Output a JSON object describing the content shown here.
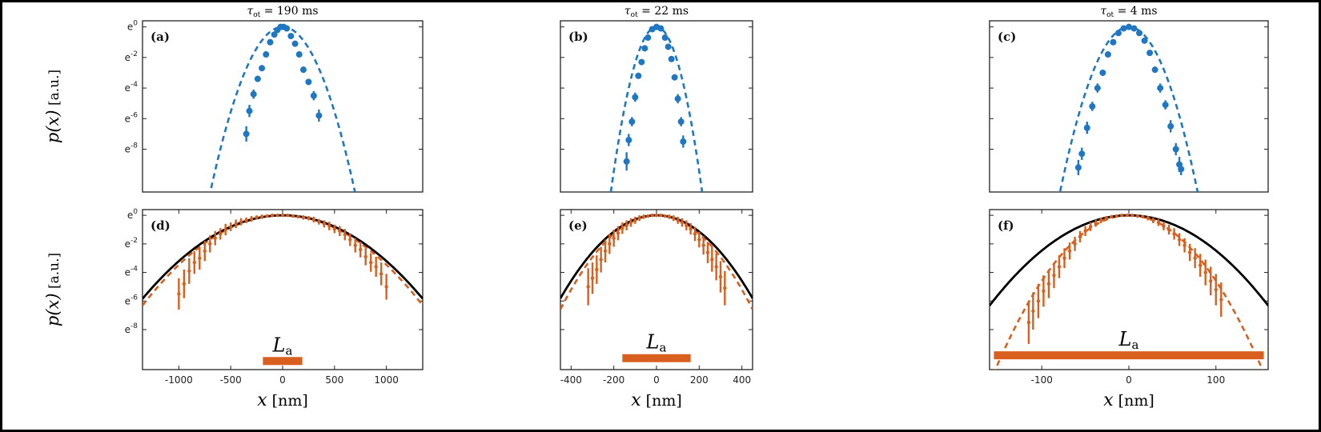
{
  "chart_data": [
    {
      "panel": "(a)",
      "type": "scatter",
      "title": "τot = 190 ms",
      "ylabel": "p(x) [a.u.]",
      "xlabel": "",
      "xlim": [
        -1350,
        1350
      ],
      "ylim": [
        -10.8,
        0.4
      ],
      "xticks": [],
      "yticks": [
        0,
        -2,
        -4,
        -6,
        -8
      ],
      "ytick_labels": [
        "e0",
        "e-2",
        "e-4",
        "e-6",
        "e-8"
      ],
      "colors": {
        "data": "#1f77c4",
        "fit": "#1f77c4"
      },
      "fit_dashed": {
        "sigma": 150
      },
      "points": [
        {
          "x": -350,
          "y": -7.0,
          "err": 0.5
        },
        {
          "x": -320,
          "y": -5.5,
          "err": 0.4
        },
        {
          "x": -280,
          "y": -4.4,
          "err": 0.3
        },
        {
          "x": -240,
          "y": -3.4,
          "err": 0.2
        },
        {
          "x": -200,
          "y": -2.7,
          "err": 0.2
        },
        {
          "x": -160,
          "y": -1.8,
          "err": 0.15
        },
        {
          "x": -120,
          "y": -1.0,
          "err": 0.1
        },
        {
          "x": -80,
          "y": -0.5,
          "err": 0.1
        },
        {
          "x": -50,
          "y": -0.2,
          "err": 0.1
        },
        {
          "x": -20,
          "y": 0.0,
          "err": 0.05
        },
        {
          "x": 10,
          "y": 0.0,
          "err": 0.05
        },
        {
          "x": 40,
          "y": -0.1,
          "err": 0.05
        },
        {
          "x": 80,
          "y": -0.6,
          "err": 0.1
        },
        {
          "x": 120,
          "y": -1.1,
          "err": 0.1
        },
        {
          "x": 160,
          "y": -1.8,
          "err": 0.15
        },
        {
          "x": 200,
          "y": -2.8,
          "err": 0.2
        },
        {
          "x": 250,
          "y": -3.6,
          "err": 0.2
        },
        {
          "x": 300,
          "y": -4.5,
          "err": 0.3
        },
        {
          "x": 350,
          "y": -5.8,
          "err": 0.4
        }
      ]
    },
    {
      "panel": "(b)",
      "type": "scatter",
      "title": "τot = 22 ms",
      "ylabel": "",
      "xlabel": "",
      "xlim": [
        -450,
        450
      ],
      "ylim": [
        -10.8,
        0.4
      ],
      "xticks": [],
      "yticks": [
        0,
        -2,
        -4,
        -6,
        -8
      ],
      "ytick_labels": [],
      "colors": {
        "data": "#1f77c4",
        "fit": "#1f77c4"
      },
      "fit_dashed": {
        "sigma": 46
      },
      "points": [
        {
          "x": -140,
          "y": -8.8,
          "err": 0.6
        },
        {
          "x": -130,
          "y": -7.4,
          "err": 0.4
        },
        {
          "x": -115,
          "y": -6.2,
          "err": 0.3
        },
        {
          "x": -100,
          "y": -4.6,
          "err": 0.3
        },
        {
          "x": -85,
          "y": -3.2,
          "err": 0.2
        },
        {
          "x": -70,
          "y": -2.3,
          "err": 0.15
        },
        {
          "x": -55,
          "y": -1.4,
          "err": 0.1
        },
        {
          "x": -40,
          "y": -0.7,
          "err": 0.1
        },
        {
          "x": -20,
          "y": -0.15,
          "err": 0.05
        },
        {
          "x": 0,
          "y": 0.0,
          "err": 0.05
        },
        {
          "x": 20,
          "y": -0.1,
          "err": 0.05
        },
        {
          "x": 40,
          "y": -0.7,
          "err": 0.1
        },
        {
          "x": 55,
          "y": -1.3,
          "err": 0.1
        },
        {
          "x": 70,
          "y": -2.1,
          "err": 0.15
        },
        {
          "x": 85,
          "y": -3.3,
          "err": 0.2
        },
        {
          "x": 100,
          "y": -4.7,
          "err": 0.3
        },
        {
          "x": 115,
          "y": -6.2,
          "err": 0.3
        },
        {
          "x": 125,
          "y": -7.5,
          "err": 0.4
        }
      ]
    },
    {
      "panel": "(c)",
      "type": "scatter",
      "title": "τot = 4 ms",
      "ylabel": "",
      "xlabel": "",
      "xlim": [
        -160,
        160
      ],
      "ylim": [
        -10.8,
        0.4
      ],
      "xticks": [],
      "yticks": [
        0,
        -2,
        -4,
        -6,
        -8
      ],
      "ytick_labels": [],
      "colors": {
        "data": "#1f77c4",
        "fit": "#1f77c4"
      },
      "fit_dashed": {
        "sigma": 17
      },
      "points": [
        {
          "x": -58,
          "y": -9.2,
          "err": 0.5
        },
        {
          "x": -54,
          "y": -8.3,
          "err": 0.4
        },
        {
          "x": -48,
          "y": -6.6,
          "err": 0.4
        },
        {
          "x": -42,
          "y": -5.2,
          "err": 0.3
        },
        {
          "x": -36,
          "y": -4.0,
          "err": 0.3
        },
        {
          "x": -30,
          "y": -3.0,
          "err": 0.2
        },
        {
          "x": -24,
          "y": -1.8,
          "err": 0.15
        },
        {
          "x": -18,
          "y": -1.0,
          "err": 0.1
        },
        {
          "x": -12,
          "y": -0.4,
          "err": 0.1
        },
        {
          "x": -6,
          "y": -0.1,
          "err": 0.05
        },
        {
          "x": 0,
          "y": 0.0,
          "err": 0.05
        },
        {
          "x": 6,
          "y": -0.1,
          "err": 0.05
        },
        {
          "x": 12,
          "y": -0.4,
          "err": 0.1
        },
        {
          "x": 18,
          "y": -0.9,
          "err": 0.1
        },
        {
          "x": 24,
          "y": -1.7,
          "err": 0.15
        },
        {
          "x": 30,
          "y": -2.8,
          "err": 0.2
        },
        {
          "x": 36,
          "y": -4.0,
          "err": 0.3
        },
        {
          "x": 42,
          "y": -5.1,
          "err": 0.3
        },
        {
          "x": 48,
          "y": -6.5,
          "err": 0.4
        },
        {
          "x": 54,
          "y": -8.0,
          "err": 0.4
        },
        {
          "x": 58,
          "y": -9.0,
          "err": 0.5
        },
        {
          "x": 60,
          "y": -9.3,
          "err": 0.4
        }
      ]
    },
    {
      "panel": "(d)",
      "type": "line",
      "title": "",
      "ylabel": "p(x) [a.u.]",
      "xlabel": "x [nm]",
      "xlim": [
        -1350,
        1350
      ],
      "ylim": [
        -10.8,
        0.4
      ],
      "xticks": [
        -1000,
        -500,
        0,
        500,
        1000
      ],
      "xtick_labels": [
        "-1000",
        "-500",
        "0",
        "500",
        "1000"
      ],
      "yticks": [
        0,
        -2,
        -4,
        -6,
        -8
      ],
      "ytick_labels": [
        "e0",
        "e-2",
        "e-4",
        "e-6",
        "e-8"
      ],
      "colors": {
        "data": "#d95f1e",
        "fit": "#000000"
      },
      "fit_solid": {
        "sigma": 395
      },
      "fit_dashed": {
        "sigma": 380
      },
      "La": {
        "label": "La",
        "x0": -190,
        "x1": 190,
        "y": -10.2
      },
      "points": [
        {
          "x": -1000,
          "y": -5.5,
          "err": 1.1
        },
        {
          "x": -950,
          "y": -4.8,
          "err": 1.0
        },
        {
          "x": -900,
          "y": -3.9,
          "err": 0.9
        },
        {
          "x": -850,
          "y": -3.3,
          "err": 0.8
        },
        {
          "x": -800,
          "y": -3.0,
          "err": 0.8
        },
        {
          "x": -750,
          "y": -2.5,
          "err": 0.7
        },
        {
          "x": -700,
          "y": -2.0,
          "err": 0.6
        },
        {
          "x": -650,
          "y": -1.6,
          "err": 0.5
        },
        {
          "x": -600,
          "y": -1.3,
          "err": 0.4
        },
        {
          "x": -550,
          "y": -1.0,
          "err": 0.4
        },
        {
          "x": -500,
          "y": -0.8,
          "err": 0.3
        },
        {
          "x": -450,
          "y": -0.6,
          "err": 0.3
        },
        {
          "x": -400,
          "y": -0.45,
          "err": 0.25
        },
        {
          "x": -350,
          "y": -0.35,
          "err": 0.2
        },
        {
          "x": -300,
          "y": -0.25,
          "err": 0.2
        },
        {
          "x": -250,
          "y": -0.15,
          "err": 0.15
        },
        {
          "x": -200,
          "y": -0.1,
          "err": 0.15
        },
        {
          "x": -150,
          "y": -0.05,
          "err": 0.1
        },
        {
          "x": -100,
          "y": 0.0,
          "err": 0.1
        },
        {
          "x": -50,
          "y": 0.0,
          "err": 0.1
        },
        {
          "x": 0,
          "y": 0.0,
          "err": 0.1
        },
        {
          "x": 50,
          "y": 0.0,
          "err": 0.1
        },
        {
          "x": 100,
          "y": -0.05,
          "err": 0.1
        },
        {
          "x": 150,
          "y": -0.1,
          "err": 0.1
        },
        {
          "x": 200,
          "y": -0.15,
          "err": 0.15
        },
        {
          "x": 250,
          "y": -0.2,
          "err": 0.15
        },
        {
          "x": 300,
          "y": -0.3,
          "err": 0.2
        },
        {
          "x": 350,
          "y": -0.45,
          "err": 0.2
        },
        {
          "x": 400,
          "y": -0.6,
          "err": 0.25
        },
        {
          "x": 450,
          "y": -0.75,
          "err": 0.3
        },
        {
          "x": 500,
          "y": -0.95,
          "err": 0.3
        },
        {
          "x": 550,
          "y": -1.1,
          "err": 0.35
        },
        {
          "x": 600,
          "y": -1.35,
          "err": 0.4
        },
        {
          "x": 650,
          "y": -1.7,
          "err": 0.45
        },
        {
          "x": 700,
          "y": -2.1,
          "err": 0.5
        },
        {
          "x": 750,
          "y": -2.4,
          "err": 0.55
        },
        {
          "x": 800,
          "y": -2.9,
          "err": 0.6
        },
        {
          "x": 850,
          "y": -3.3,
          "err": 0.65
        },
        {
          "x": 900,
          "y": -3.6,
          "err": 0.7
        },
        {
          "x": 950,
          "y": -4.1,
          "err": 0.8
        },
        {
          "x": 1000,
          "y": -5.0,
          "err": 0.9
        }
      ]
    },
    {
      "panel": "(e)",
      "type": "line",
      "title": "",
      "ylabel": "",
      "xlabel": "x [nm]",
      "xlim": [
        -450,
        450
      ],
      "ylim": [
        -10.8,
        0.4
      ],
      "xticks": [
        -400,
        -200,
        0,
        200,
        400
      ],
      "xtick_labels": [
        "-400",
        "-200",
        "0",
        "200",
        "400"
      ],
      "yticks": [
        0,
        -2,
        -4,
        -6,
        -8
      ],
      "ytick_labels": [],
      "colors": {
        "data": "#d95f1e",
        "fit": "#000000"
      },
      "fit_solid": {
        "sigma": 132
      },
      "fit_dashed": {
        "sigma": 124
      },
      "La": {
        "label": "La",
        "x0": -160,
        "x1": 160,
        "y": -10.0
      },
      "points": [
        {
          "x": -320,
          "y": -5.0,
          "err": 1.3
        },
        {
          "x": -300,
          "y": -4.4,
          "err": 1.1
        },
        {
          "x": -280,
          "y": -3.8,
          "err": 1.0
        },
        {
          "x": -260,
          "y": -3.1,
          "err": 0.9
        },
        {
          "x": -240,
          "y": -2.5,
          "err": 0.8
        },
        {
          "x": -220,
          "y": -2.0,
          "err": 0.7
        },
        {
          "x": -200,
          "y": -1.6,
          "err": 0.6
        },
        {
          "x": -180,
          "y": -1.25,
          "err": 0.5
        },
        {
          "x": -160,
          "y": -0.9,
          "err": 0.4
        },
        {
          "x": -140,
          "y": -0.7,
          "err": 0.35
        },
        {
          "x": -120,
          "y": -0.5,
          "err": 0.3
        },
        {
          "x": -100,
          "y": -0.35,
          "err": 0.25
        },
        {
          "x": -80,
          "y": -0.2,
          "err": 0.2
        },
        {
          "x": -60,
          "y": -0.1,
          "err": 0.15
        },
        {
          "x": -40,
          "y": -0.05,
          "err": 0.1
        },
        {
          "x": -20,
          "y": 0.0,
          "err": 0.1
        },
        {
          "x": 0,
          "y": 0.0,
          "err": 0.1
        },
        {
          "x": 20,
          "y": 0.0,
          "err": 0.1
        },
        {
          "x": 40,
          "y": -0.05,
          "err": 0.1
        },
        {
          "x": 60,
          "y": -0.1,
          "err": 0.15
        },
        {
          "x": 80,
          "y": -0.2,
          "err": 0.2
        },
        {
          "x": 100,
          "y": -0.35,
          "err": 0.25
        },
        {
          "x": 120,
          "y": -0.5,
          "err": 0.3
        },
        {
          "x": 140,
          "y": -0.7,
          "err": 0.35
        },
        {
          "x": 160,
          "y": -0.95,
          "err": 0.4
        },
        {
          "x": 180,
          "y": -1.3,
          "err": 0.5
        },
        {
          "x": 200,
          "y": -1.7,
          "err": 0.55
        },
        {
          "x": 220,
          "y": -2.1,
          "err": 0.65
        },
        {
          "x": 240,
          "y": -2.6,
          "err": 0.75
        },
        {
          "x": 260,
          "y": -3.1,
          "err": 0.85
        },
        {
          "x": 280,
          "y": -3.6,
          "err": 0.95
        },
        {
          "x": 300,
          "y": -4.3,
          "err": 1.1
        },
        {
          "x": 320,
          "y": -5.1,
          "err": 1.2
        }
      ]
    },
    {
      "panel": "(f)",
      "type": "line",
      "title": "",
      "ylabel": "",
      "xlabel": "x [nm]",
      "xlim": [
        -160,
        160
      ],
      "ylim": [
        -10.8,
        0.4
      ],
      "xticks": [
        -100,
        0,
        100
      ],
      "xtick_labels": [
        "-100",
        "0",
        "100"
      ],
      "yticks": [
        0,
        -2,
        -4,
        -6,
        -8
      ],
      "ytick_labels": [],
      "colors": {
        "data": "#d95f1e",
        "fit": "#000000"
      },
      "fit_solid": {
        "sigma": 45
      },
      "fit_dashed": {
        "sigma": 33
      },
      "La": {
        "label": "La",
        "x0": -155,
        "x1": 155,
        "y": -9.8
      },
      "points": [
        {
          "x": -115,
          "y": -7.5,
          "err": 1.5
        },
        {
          "x": -110,
          "y": -6.7,
          "err": 1.3
        },
        {
          "x": -104,
          "y": -6.0,
          "err": 1.2
        },
        {
          "x": -98,
          "y": -5.3,
          "err": 1.1
        },
        {
          "x": -92,
          "y": -4.8,
          "err": 1.0
        },
        {
          "x": -86,
          "y": -4.2,
          "err": 0.9
        },
        {
          "x": -80,
          "y": -3.6,
          "err": 0.8
        },
        {
          "x": -74,
          "y": -3.0,
          "err": 0.7
        },
        {
          "x": -68,
          "y": -2.5,
          "err": 0.6
        },
        {
          "x": -62,
          "y": -2.0,
          "err": 0.5
        },
        {
          "x": -56,
          "y": -1.5,
          "err": 0.4
        },
        {
          "x": -50,
          "y": -1.1,
          "err": 0.35
        },
        {
          "x": -44,
          "y": -0.8,
          "err": 0.3
        },
        {
          "x": -38,
          "y": -0.55,
          "err": 0.25
        },
        {
          "x": -32,
          "y": -0.35,
          "err": 0.2
        },
        {
          "x": -26,
          "y": -0.2,
          "err": 0.15
        },
        {
          "x": -20,
          "y": -0.1,
          "err": 0.1
        },
        {
          "x": -14,
          "y": -0.05,
          "err": 0.1
        },
        {
          "x": -8,
          "y": 0.0,
          "err": 0.1
        },
        {
          "x": -2,
          "y": 0.0,
          "err": 0.1
        },
        {
          "x": 4,
          "y": 0.0,
          "err": 0.1
        },
        {
          "x": 10,
          "y": -0.05,
          "err": 0.1
        },
        {
          "x": 16,
          "y": -0.1,
          "err": 0.1
        },
        {
          "x": 22,
          "y": -0.2,
          "err": 0.15
        },
        {
          "x": 28,
          "y": -0.35,
          "err": 0.2
        },
        {
          "x": 34,
          "y": -0.5,
          "err": 0.25
        },
        {
          "x": 40,
          "y": -0.75,
          "err": 0.3
        },
        {
          "x": 46,
          "y": -1.0,
          "err": 0.35
        },
        {
          "x": 52,
          "y": -1.3,
          "err": 0.4
        },
        {
          "x": 58,
          "y": -1.7,
          "err": 0.45
        },
        {
          "x": 64,
          "y": -2.1,
          "err": 0.5
        },
        {
          "x": 70,
          "y": -2.6,
          "err": 0.6
        },
        {
          "x": 76,
          "y": -3.0,
          "err": 0.7
        },
        {
          "x": 82,
          "y": -3.5,
          "err": 0.8
        },
        {
          "x": 88,
          "y": -4.0,
          "err": 0.9
        },
        {
          "x": 94,
          "y": -4.6,
          "err": 1.0
        },
        {
          "x": 100,
          "y": -5.2,
          "err": 1.1
        },
        {
          "x": 106,
          "y": -5.9,
          "err": 1.2
        }
      ]
    }
  ]
}
